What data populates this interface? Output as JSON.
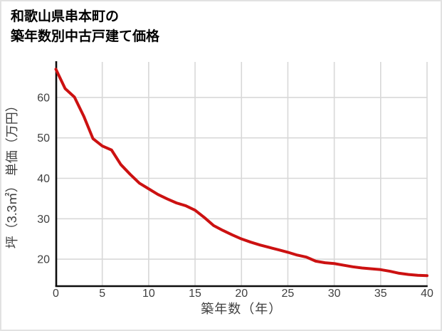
{
  "card": {
    "title_line1": "和歌山県串本町の",
    "title_line2": "築年数別中古戸建て価格"
  },
  "chart_data": {
    "type": "line",
    "title": "和歌山県串本町の築年数別中古戸建て価格",
    "xlabel": "築年数（年）",
    "ylabel": "坪（3.3㎡） 単価（万円）",
    "x": [
      0,
      1,
      2,
      3,
      4,
      5,
      6,
      7,
      8,
      9,
      10,
      11,
      12,
      13,
      14,
      15,
      16,
      17,
      18,
      19,
      20,
      21,
      22,
      23,
      24,
      25,
      26,
      27,
      28,
      29,
      30,
      31,
      32,
      33,
      34,
      35,
      36,
      37,
      38,
      39,
      40
    ],
    "values": [
      67.0,
      62.2,
      60.1,
      55.4,
      49.8,
      48.0,
      47.0,
      43.4,
      41.0,
      38.8,
      37.4,
      36.0,
      34.9,
      33.9,
      33.2,
      32.1,
      30.3,
      28.3,
      27.1,
      26.0,
      25.0,
      24.2,
      23.5,
      22.9,
      22.3,
      21.7,
      21.0,
      20.5,
      19.5,
      19.1,
      18.9,
      18.5,
      18.1,
      17.8,
      17.6,
      17.4,
      17.0,
      16.5,
      16.2,
      16.0,
      15.9
    ],
    "xticks": [
      0,
      5,
      10,
      15,
      20,
      25,
      30,
      35,
      40
    ],
    "yticks": [
      20,
      30,
      40,
      50,
      60
    ],
    "xlim": [
      0,
      40
    ],
    "ylim": [
      13.4,
      68.8
    ],
    "grid": true,
    "legend": "none",
    "colors": {
      "line": "#cc1111",
      "axis": "#0d0d0d",
      "grid": "#d8d8d8",
      "tick_text": "#404040",
      "title_text": "#000000",
      "border": "#e2e2e2"
    }
  }
}
